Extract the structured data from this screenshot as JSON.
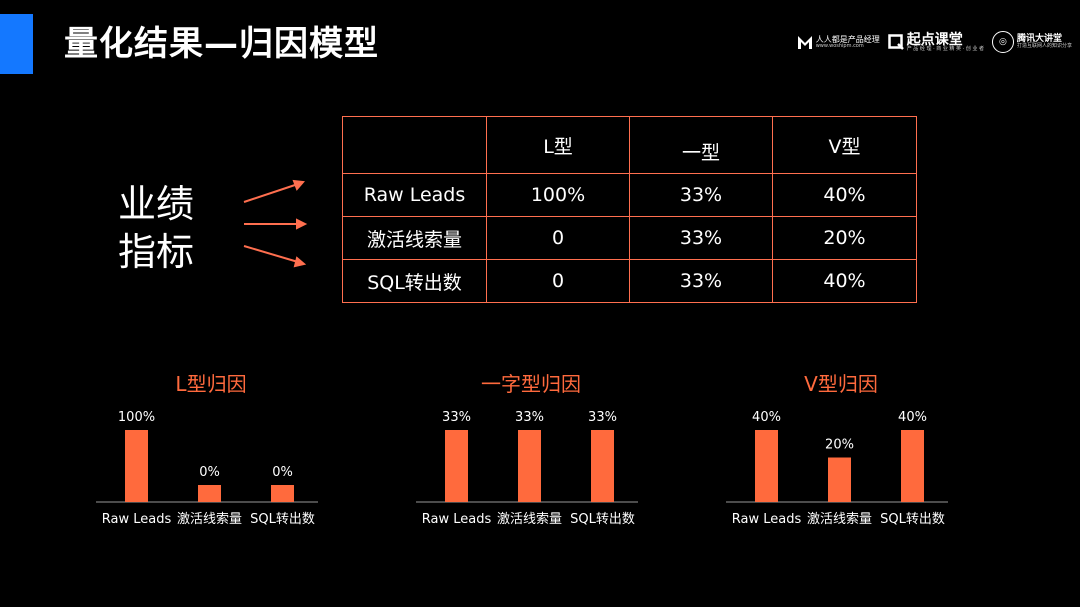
{
  "slide": {
    "title": "量化结果—归因模型",
    "accent_color": "#1478ff",
    "chart_color": "#ff6a3d"
  },
  "logos": {
    "woshipm": {
      "name": "人人都是产品经理",
      "url": "www.woshipm.com"
    },
    "qidian": {
      "name": "起点课堂",
      "sub": "产 品 经 理 · 商 业 精 英 · 创 业 者"
    },
    "tencent": {
      "name": "腾讯大讲堂",
      "sub": "打造互联网人的知识分享"
    }
  },
  "metric_label": {
    "line1": "业绩",
    "line2": "指标"
  },
  "table": {
    "headers": [
      "",
      "L型",
      "一型",
      "V型"
    ],
    "rows": [
      [
        "Raw Leads",
        "100%",
        "33%",
        "40%"
      ],
      [
        "激活线索量",
        "0",
        "33%",
        "20%"
      ],
      [
        "SQL转出数",
        "0",
        "33%",
        "40%"
      ]
    ]
  },
  "chart_data": [
    {
      "type": "bar",
      "title": "L型归因",
      "categories": [
        "Raw Leads",
        "激活线索量",
        "SQL转出数"
      ],
      "values": [
        100,
        0,
        0
      ],
      "labels": [
        "100%",
        "0%",
        "0%"
      ],
      "ylim": [
        0,
        100
      ]
    },
    {
      "type": "bar",
      "title": "一字型归因",
      "categories": [
        "Raw Leads",
        "激活线索量",
        "SQL转出数"
      ],
      "values": [
        33,
        33,
        33
      ],
      "labels": [
        "33%",
        "33%",
        "33%"
      ],
      "ylim": [
        0,
        33
      ]
    },
    {
      "type": "bar",
      "title": "V型归因",
      "categories": [
        "Raw Leads",
        "激活线索量",
        "SQL转出数"
      ],
      "values": [
        40,
        20,
        40
      ],
      "labels": [
        "40%",
        "20%",
        "40%"
      ],
      "ylim": [
        0,
        40
      ]
    }
  ]
}
